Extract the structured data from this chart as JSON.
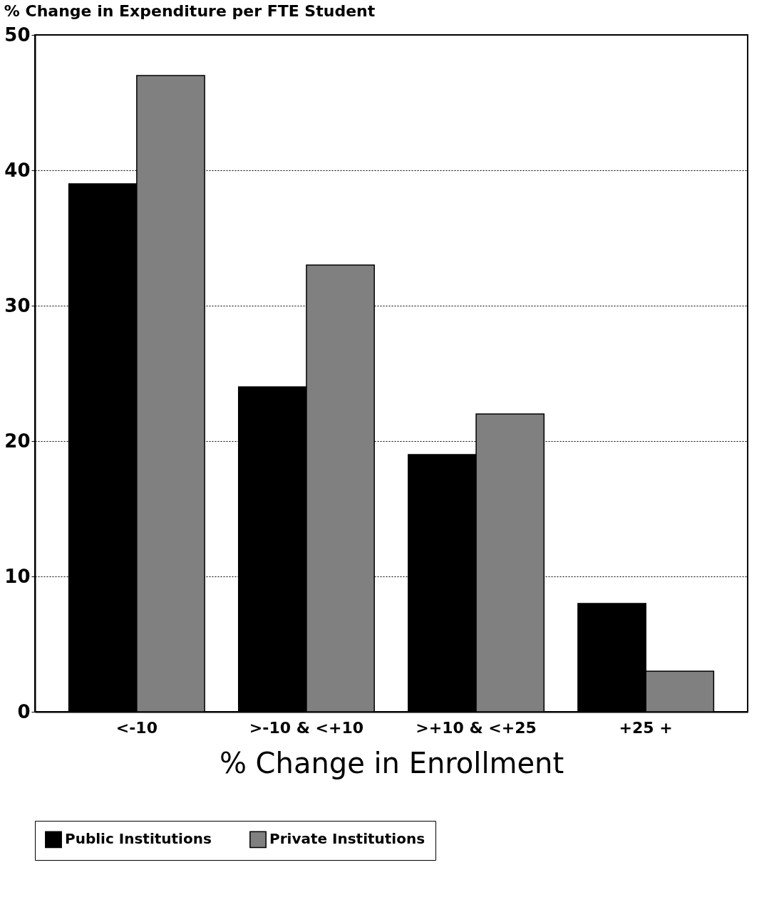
{
  "chart_data": {
    "type": "bar",
    "title": "% Change in Expenditure per FTE Student",
    "xlabel": "% Change in Enrollment",
    "categories": [
      "<-10",
      ">-10 & <+10",
      ">+10 & <+25",
      "+25 +"
    ],
    "series": [
      {
        "name": "Public Institutions",
        "color": "#000000",
        "values": [
          39,
          24,
          19,
          8
        ]
      },
      {
        "name": "Private Institutions",
        "color": "#808080",
        "values": [
          47,
          33,
          22,
          3
        ]
      }
    ],
    "ylim": [
      0,
      50
    ],
    "yticks": [
      0,
      10,
      20,
      30,
      40,
      50
    ],
    "grid": "y",
    "legend": "bottom"
  }
}
